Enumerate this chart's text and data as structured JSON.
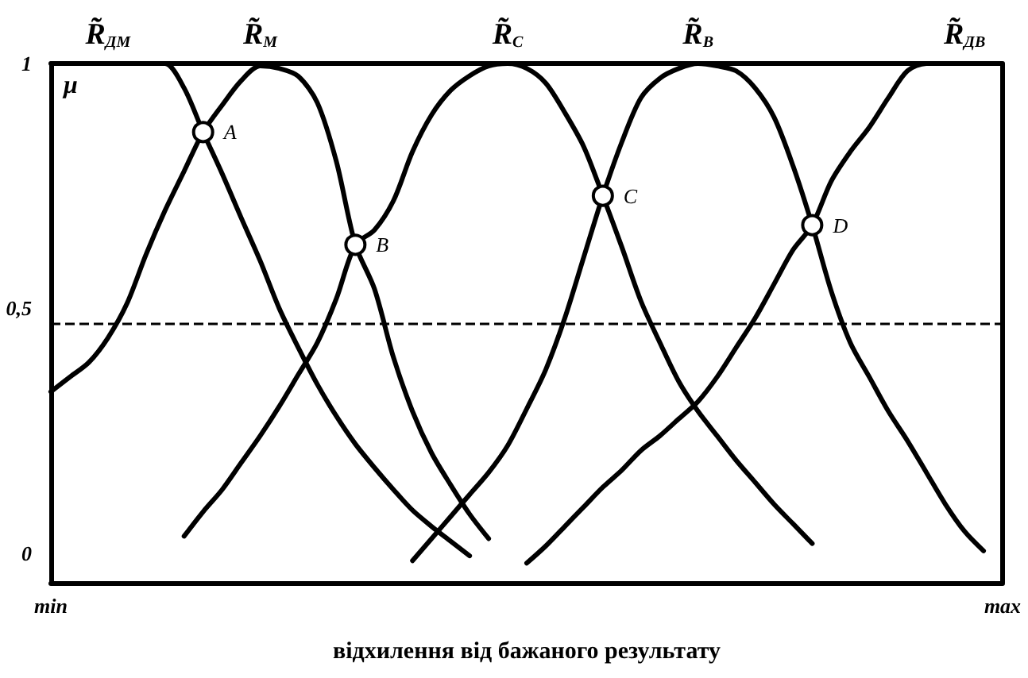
{
  "chart_data": {
    "type": "line",
    "xlabel": "відхилення від бажаного результату",
    "ylabel": "μ",
    "categories": [
      "min",
      null,
      null,
      null,
      null,
      null,
      null,
      null,
      null,
      null,
      null,
      null,
      null,
      null,
      null,
      null,
      null,
      null,
      null,
      null,
      null,
      null,
      null,
      null,
      null,
      null,
      null,
      null,
      null,
      null,
      null,
      null,
      null,
      null,
      null,
      null,
      null,
      null,
      null,
      null,
      null,
      null,
      null,
      null,
      null,
      null,
      null,
      null,
      null,
      null,
      "max"
    ],
    "ylim": [
      -0.06,
      1
    ],
    "yticks": [
      0,
      {
        "value": 0.5,
        "label": "0,5"
      },
      1
    ],
    "grid": false,
    "legend": false,
    "marker": "none",
    "line_style": "solid",
    "series": [
      {
        "name": "R̃$_{ДМ}$",
        "color": "#000000",
        "values": [
          1,
          1,
          1,
          1,
          1,
          1,
          1,
          0.95,
          0.86,
          0.775,
          0.685,
          0.597,
          0.5,
          0.42,
          0.345,
          0.28,
          0.223,
          0.175,
          0.13,
          0.088,
          0.055,
          0.025,
          -0.005,
          null,
          null,
          null,
          null,
          null,
          null,
          null,
          null,
          null,
          null,
          null,
          null,
          null,
          null,
          null,
          null,
          null,
          null,
          null,
          null,
          null,
          null,
          null,
          null,
          null,
          null,
          null,
          null
        ]
      },
      {
        "name": "R̃$_{М}$",
        "color": "#000000",
        "values": [
          0.33,
          0.36,
          0.39,
          0.44,
          0.51,
          0.61,
          0.7,
          0.78,
          0.86,
          0.915,
          0.965,
          0.995,
          0.99,
          0.974,
          0.92,
          0.8,
          0.63,
          0.54,
          0.4,
          0.29,
          0.205,
          0.14,
          0.08,
          0.03,
          null,
          null,
          null,
          null,
          null,
          null,
          null,
          null,
          null,
          null,
          null,
          null,
          null,
          null,
          null,
          null,
          null,
          null,
          null,
          null,
          null,
          null,
          null,
          null,
          null,
          null,
          null
        ]
      },
      {
        "name": "R̃$_{С}$",
        "color": "#000000",
        "values": [
          null,
          null,
          null,
          null,
          null,
          null,
          null,
          0.035,
          0.085,
          0.13,
          0.185,
          0.24,
          0.3,
          0.365,
          0.43,
          0.52,
          0.63,
          0.66,
          0.72,
          0.82,
          0.895,
          0.945,
          0.975,
          0.995,
          1,
          0.99,
          0.96,
          0.9,
          0.83,
          0.73,
          0.625,
          0.515,
          0.43,
          0.35,
          0.29,
          0.24,
          0.19,
          0.145,
          0.1,
          0.06,
          0.02,
          null,
          null,
          null,
          null,
          null,
          null,
          null,
          null,
          null,
          null
        ]
      },
      {
        "name": "R̃$_{В}$",
        "color": "#000000",
        "values": [
          null,
          null,
          null,
          null,
          null,
          null,
          null,
          null,
          null,
          null,
          null,
          null,
          null,
          null,
          null,
          null,
          null,
          null,
          null,
          -0.015,
          0.03,
          0.075,
          0.12,
          0.165,
          0.22,
          0.295,
          0.375,
          0.48,
          0.605,
          0.73,
          0.84,
          0.93,
          0.97,
          0.99,
          1,
          0.995,
          0.985,
          0.95,
          0.89,
          0.79,
          0.67,
          0.535,
          0.43,
          0.36,
          0.29,
          0.23,
          0.165,
          0.1,
          0.045,
          0.005,
          null
        ]
      },
      {
        "name": "R̃$_{ДВ}$",
        "color": "#000000",
        "values": [
          null,
          null,
          null,
          null,
          null,
          null,
          null,
          null,
          null,
          null,
          null,
          null,
          null,
          null,
          null,
          null,
          null,
          null,
          null,
          null,
          null,
          null,
          null,
          null,
          null,
          -0.02,
          0.015,
          0.055,
          0.095,
          0.135,
          0.17,
          0.21,
          0.24,
          0.275,
          0.31,
          0.36,
          0.42,
          0.48,
          0.55,
          0.62,
          0.67,
          0.76,
          0.82,
          0.87,
          0.93,
          0.985,
          1,
          1,
          1,
          1,
          1
        ]
      },
      {
        "type": "scatter",
        "color": "#ffffff",
        "marker": "circle",
        "values": [
          null,
          null,
          null,
          null,
          null,
          null,
          null,
          null,
          0.86,
          null,
          null,
          null,
          null,
          null,
          null,
          null,
          0.63,
          null,
          null,
          null,
          null,
          null,
          null,
          null,
          null,
          null,
          null,
          null,
          null,
          0.73,
          null,
          null,
          null,
          null,
          null,
          null,
          null,
          null,
          null,
          null,
          0.67,
          null,
          null,
          null,
          null,
          null,
          null,
          null,
          null,
          null,
          null
        ],
        "value_labels": [
          null,
          null,
          null,
          null,
          null,
          null,
          null,
          null,
          "A",
          null,
          null,
          null,
          null,
          null,
          null,
          null,
          "B",
          null,
          null,
          null,
          null,
          null,
          null,
          null,
          null,
          null,
          null,
          null,
          null,
          "C",
          null,
          null,
          null,
          null,
          null,
          null,
          null,
          null,
          null,
          null,
          "D",
          null,
          null,
          null,
          null,
          null,
          null,
          null,
          null,
          null,
          null
        ]
      }
    ],
    "ref_lines": [
      {
        "axis": "y",
        "value": 0.47,
        "color": "#000000",
        "line_style": "dashed"
      }
    ]
  }
}
